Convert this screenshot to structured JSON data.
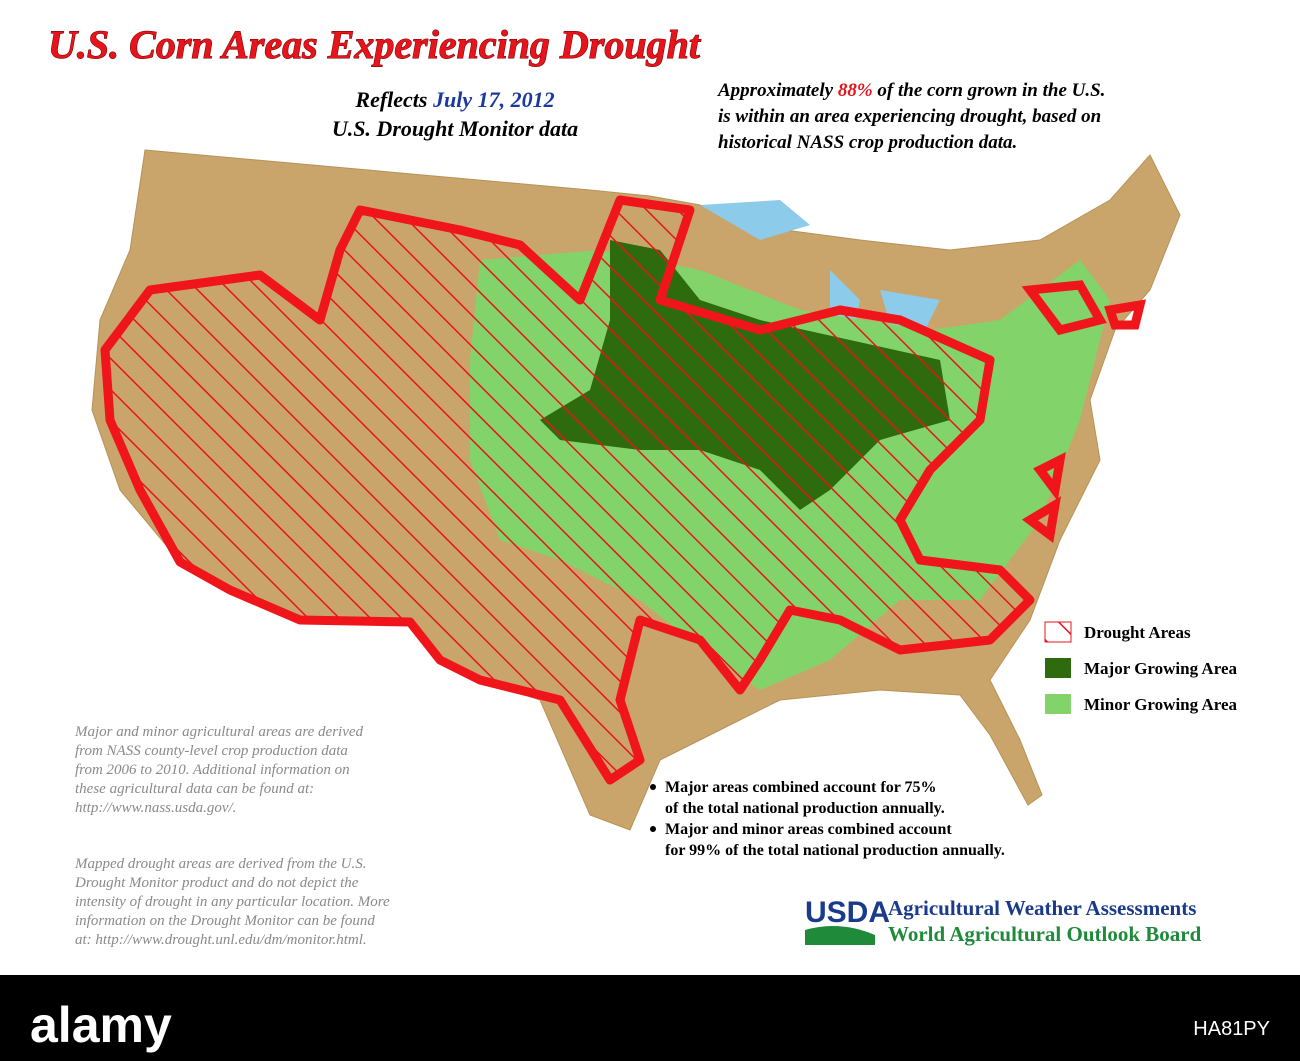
{
  "header": {
    "title": "U.S. Corn Areas Experiencing Drought",
    "reflects": [
      "Reflects ",
      "July 17, 2012"
    ],
    "source": "U.S. Drought Monitor data"
  },
  "note": {
    "line1": [
      "Approximately ",
      "88%",
      " of the corn grown in the U.S."
    ],
    "lines": [
      "is within an area experiencing drought, based on",
      "historical NASS crop production data."
    ]
  },
  "legend": [
    "Drought Areas",
    "Major Growing Area",
    "Minor Growing Area"
  ],
  "bullets": [
    [
      "Major areas combined account for 75%",
      "of the total national production annually."
    ],
    [
      "Major and minor areas combined account",
      "for 99% of the total national production annually."
    ]
  ],
  "footnotes": [
    [
      "Major and minor agricultural areas are derived",
      "from NASS county-level crop production data",
      "from 2006 to 2010.  Additional information on",
      "these agricultural data can be found at:",
      "http://www.nass.usda.gov/."
    ],
    [
      "Mapped drought areas are derived from the U.S.",
      "Drought Monitor product and do not depict the",
      "intensity of drought in any particular location.  More",
      "information on the Drought Monitor can be found",
      "at:  http://www.drought.unl.edu/dm/monitor.html."
    ]
  ],
  "logo": {
    "mark": "USDA",
    "lines": [
      "Agricultural Weather Assessments",
      "World Agricultural Outlook Board"
    ]
  },
  "watermark": {
    "brand": "alamy",
    "id": "HA81PY"
  }
}
